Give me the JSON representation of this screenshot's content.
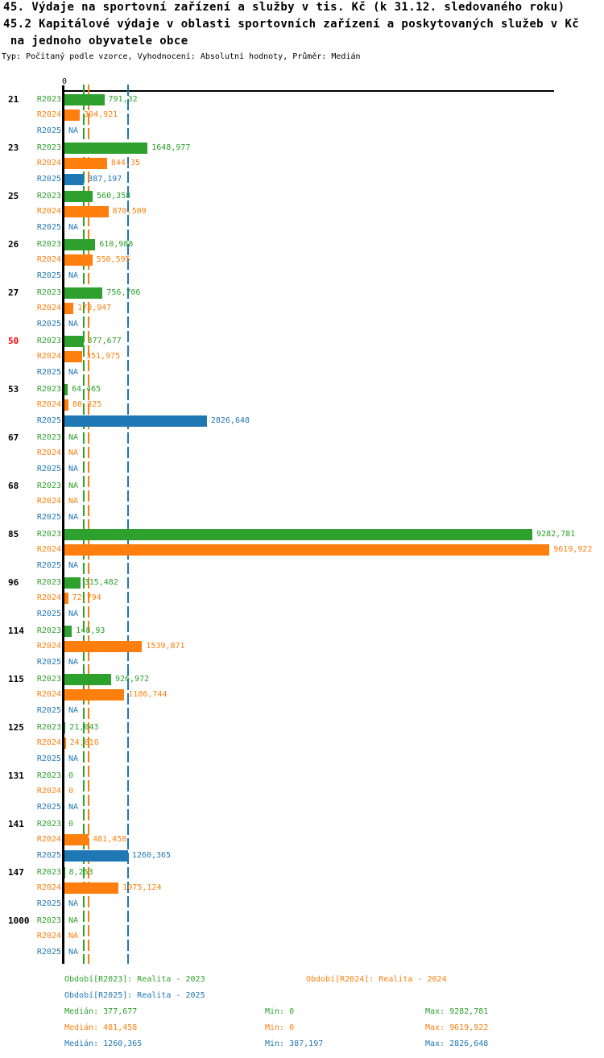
{
  "header": {
    "title_line1": "45. Výdaje na sportovní zařízení a služby v tis. Kč (k 31.12. sledovaného roku)",
    "title_line2": "45.2 Kapitálové výdaje v oblasti sportovních zařízení a poskytovaných služeb v Kč",
    "title_line3": " na jednoho obyvatele obce",
    "meta_line": "Typ: Počítaný podle vzorce, Vyhodnocení: Absolutní hodnoty, Průměr: Medián"
  },
  "colors": {
    "green": "#2da02d",
    "orange": "#ff7f0e",
    "blue": "#1f77b4",
    "red": "#ff0000",
    "axis": "#000000"
  },
  "chart_data": {
    "type": "bar",
    "orientation": "horizontal",
    "x_axis": {
      "zero_label": "0",
      "min": 0,
      "max_value_shown": 9619.922,
      "gridlines": "median lines per series, dashed"
    },
    "na_text": "NA",
    "categories": [
      "21",
      "23",
      "25",
      "26",
      "27",
      "50",
      "53",
      "67",
      "68",
      "85",
      "96",
      "114",
      "115",
      "125",
      "131",
      "141",
      "147",
      "1000"
    ],
    "highlighted_category": "50",
    "series": [
      {
        "key": "R2023",
        "legend_label": "Období[R2023]: Realita - 2023",
        "color": "#2da02d",
        "median": 377.677,
        "values": [
          791.32,
          1648.977,
          560.358,
          610.988,
          756.706,
          377.677,
          64.465,
          null,
          null,
          9282.781,
          315.482,
          148.93,
          926.972,
          21.043,
          0,
          0,
          8.263,
          null
        ],
        "value_labels": [
          "791,32",
          "1648,977",
          "560,358",
          "610,988",
          "756,706",
          "377,677",
          "64,465",
          "NA",
          "NA",
          "9282,781",
          "315,482",
          "148,93",
          "926,972",
          "21,043",
          "0",
          "0",
          "8,263",
          "NA"
        ],
        "stats": {
          "median": "Medián: 377,677",
          "min": "Min: 0",
          "max": "Max: 9282,781"
        }
      },
      {
        "key": "R2024",
        "legend_label": "Období[R2024]: Realita - 2024",
        "color": "#ff7f0e",
        "median": 481.458,
        "values": [
          304.921,
          844.35,
          870.509,
          550.595,
          178.947,
          351.975,
          80.325,
          null,
          null,
          9619.922,
          72.794,
          1539.871,
          1186.744,
          24.816,
          0,
          481.458,
          1075.124,
          null
        ],
        "value_labels": [
          "304,921",
          "844,35",
          "870,509",
          "550,595",
          "178,947",
          "351,975",
          "80,325",
          "NA",
          "NA",
          "9619,922",
          "72,794",
          "1539,871",
          "1186,744",
          "24,816",
          "0",
          "481,458",
          "1075,124",
          "NA"
        ],
        "stats": {
          "median": "Medián: 481,458",
          "min": "Min: 0",
          "max": "Max: 9619,922"
        }
      },
      {
        "key": "R2025",
        "legend_label": "Období[R2025]: Realita - 2025",
        "color": "#1f77b4",
        "median": 1260.365,
        "values": [
          null,
          387.197,
          null,
          null,
          null,
          null,
          2826.648,
          null,
          null,
          null,
          null,
          null,
          null,
          null,
          null,
          1260.365,
          null,
          null
        ],
        "value_labels": [
          "NA",
          "387,197",
          "NA",
          "NA",
          "NA",
          "NA",
          "2826,648",
          "NA",
          "NA",
          "NA",
          "NA",
          "NA",
          "NA",
          "NA",
          "NA",
          "1260,365",
          "NA",
          "NA"
        ],
        "stats": {
          "median": "Medián: 1260,365",
          "min": "Min: 387,197",
          "max": "Max: 2826,648"
        }
      }
    ]
  }
}
